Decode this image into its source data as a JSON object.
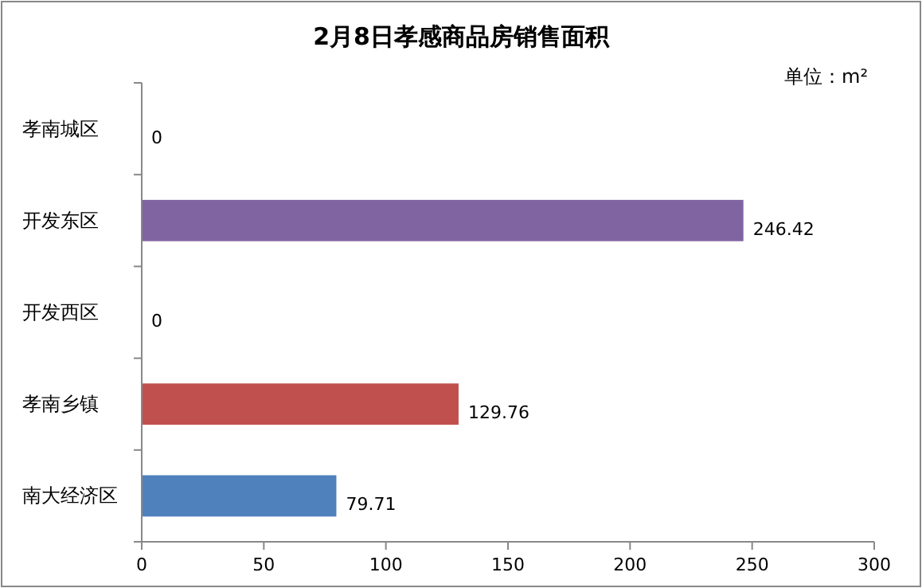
{
  "chart_data": {
    "type": "bar",
    "orientation": "horizontal",
    "title": "2月8日孝感商品房销售面积",
    "annotations": [
      "单位：m²"
    ],
    "categories": [
      "孝南城区",
      "开发东区",
      "开发西区",
      "孝南乡镇",
      "南大经济区"
    ],
    "values": [
      0,
      246.42,
      0,
      129.76,
      79.71
    ],
    "colors": [
      "#4f81bd",
      "#8064a2",
      "#4f81bd",
      "#c0504d",
      "#4f81bd"
    ],
    "xlim": [
      0,
      300
    ],
    "xticks": [
      0,
      50,
      100,
      150,
      200,
      250,
      300
    ],
    "data_labels": true,
    "grid": false
  }
}
